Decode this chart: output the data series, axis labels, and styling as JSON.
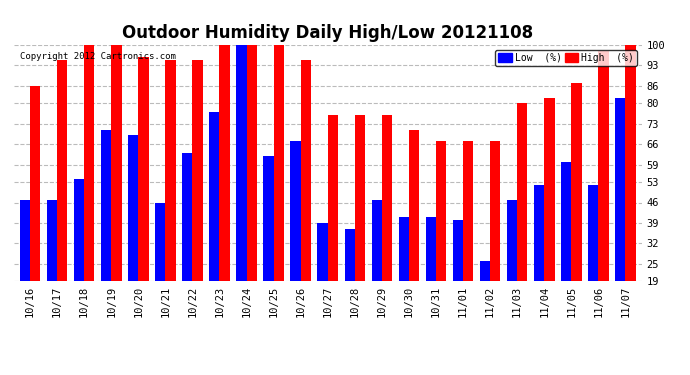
{
  "title": "Outdoor Humidity Daily High/Low 20121108",
  "copyright": "Copyright 2012 Cartronics.com",
  "dates": [
    "10/16",
    "10/17",
    "10/18",
    "10/19",
    "10/20",
    "10/21",
    "10/22",
    "10/23",
    "10/24",
    "10/25",
    "10/26",
    "10/27",
    "10/28",
    "10/29",
    "10/30",
    "10/31",
    "11/01",
    "11/02",
    "11/03",
    "11/04",
    "11/05",
    "11/06",
    "11/07"
  ],
  "high": [
    86,
    95,
    100,
    100,
    96,
    95,
    95,
    100,
    100,
    100,
    95,
    76,
    76,
    76,
    71,
    67,
    67,
    67,
    80,
    82,
    87,
    98,
    100
  ],
  "low": [
    47,
    47,
    54,
    71,
    69,
    46,
    63,
    77,
    100,
    62,
    67,
    39,
    37,
    47,
    41,
    41,
    40,
    26,
    47,
    52,
    60,
    52,
    82
  ],
  "ylim_min": 19,
  "ylim_max": 100,
  "yticks": [
    19,
    25,
    32,
    39,
    46,
    53,
    59,
    66,
    73,
    80,
    86,
    93,
    100
  ],
  "bar_width": 0.38,
  "high_color": "#ff0000",
  "low_color": "#0000ff",
  "bg_color": "#ffffff",
  "grid_color": "#bbbbbb",
  "title_fontsize": 12,
  "tick_fontsize": 7.5
}
